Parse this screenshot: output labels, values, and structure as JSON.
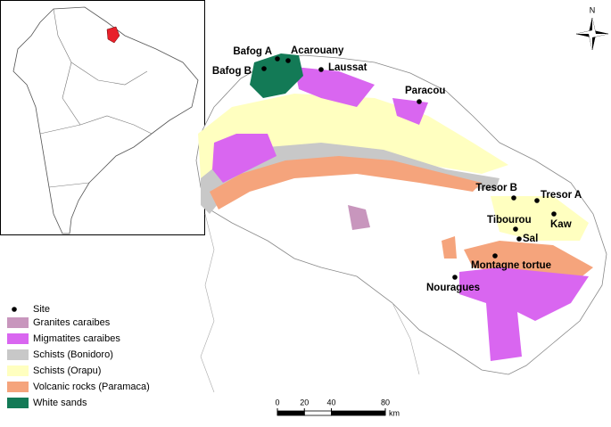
{
  "sites": [
    {
      "name": "Bafog A"
    },
    {
      "name": "Acarouany"
    },
    {
      "name": "Bafog B"
    },
    {
      "name": "Laussat"
    },
    {
      "name": "Paracou"
    },
    {
      "name": "Tresor B"
    },
    {
      "name": "Tresor A"
    },
    {
      "name": "Kaw"
    },
    {
      "name": "Tibourou"
    },
    {
      "name": "Sal"
    },
    {
      "name": "Montagne tortue"
    },
    {
      "name": "Nouragues"
    }
  ],
  "legend": {
    "site": "Site",
    "units": [
      {
        "label": "Granites caraibes",
        "color": "#c896bd"
      },
      {
        "label": "Migmatites caraibes",
        "color": "#d966f0"
      },
      {
        "label": "Schists (Bonidoro)",
        "color": "#c8c8c8"
      },
      {
        "label": "Schists (Orapu)",
        "color": "#ffffc0"
      },
      {
        "label": "Volcanic rocks (Paramaca)",
        "color": "#f5a47c"
      },
      {
        "label": "White sands",
        "color": "#137a56"
      }
    ]
  },
  "scale_bar": {
    "ticks": [
      0,
      20,
      40,
      80
    ],
    "unit": "km"
  },
  "compass": "N"
}
